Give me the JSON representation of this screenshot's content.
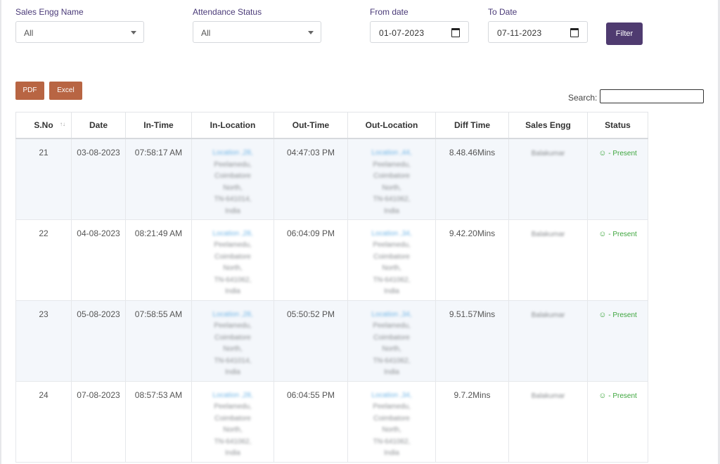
{
  "filters": {
    "sales_engg_label": "Sales Engg Name",
    "sales_engg_value": "All",
    "attendance_label": "Attendance Status",
    "attendance_value": "All",
    "from_label": "From date",
    "from_value": "01-07-2023",
    "to_label": "To Date",
    "to_value": "07-11-2023",
    "filter_button": "Filter"
  },
  "export": {
    "pdf": "PDF",
    "excel": "Excel"
  },
  "search": {
    "label": "Search:",
    "value": ""
  },
  "table": {
    "headers": [
      "S.No",
      "Date",
      "In-Time",
      "In-Location",
      "Out-Time",
      "Out-Location",
      "Diff Time",
      "Sales Engg",
      "Status"
    ],
    "rows": [
      {
        "sno": "21",
        "date": "03-08-2023",
        "in_time": "07:58:17 AM",
        "in_location": [
          "Location ,28,",
          "Peelamedu,",
          "Coimbatore",
          "North,",
          "TN-641014,",
          "India"
        ],
        "out_time": "04:47:03 PM",
        "out_location": [
          "Location ,44,",
          "Peelamedu,",
          "Coimbatore",
          "North,",
          "TN-641062,",
          "India"
        ],
        "diff_time": "8.48.46Mins",
        "sales_engg": "Balakumar",
        "status": "- Present"
      },
      {
        "sno": "22",
        "date": "04-08-2023",
        "in_time": "08:21:49 AM",
        "in_location": [
          "Location ,28,",
          "Peelamedu,",
          "Coimbatore",
          "North,",
          "TN-641062,",
          "India"
        ],
        "out_time": "06:04:09 PM",
        "out_location": [
          "Location ,34,",
          "Peelamedu,",
          "Coimbatore",
          "North,",
          "TN-641062,",
          "India"
        ],
        "diff_time": "9.42.20Mins",
        "sales_engg": "Balakumar",
        "status": "- Present"
      },
      {
        "sno": "23",
        "date": "05-08-2023",
        "in_time": "07:58:55 AM",
        "in_location": [
          "Location ,28,",
          "Peelamedu,",
          "Coimbatore",
          "North,",
          "TN-641014,",
          "India"
        ],
        "out_time": "05:50:52 PM",
        "out_location": [
          "Location ,34,",
          "Peelamedu,",
          "Coimbatore",
          "North,",
          "TN-641062,",
          "India"
        ],
        "diff_time": "9.51.57Mins",
        "sales_engg": "Balakumar",
        "status": "- Present"
      },
      {
        "sno": "24",
        "date": "07-08-2023",
        "in_time": "08:57:53 AM",
        "in_location": [
          "Location ,28,",
          "Peelamedu,",
          "Coimbatore",
          "North,",
          "TN-641062,",
          "India"
        ],
        "out_time": "06:04:55 PM",
        "out_location": [
          "Location ,34,",
          "Peelamedu,",
          "Coimbatore",
          "North,",
          "TN-641062,",
          "India"
        ],
        "diff_time": "9.7.2Mins",
        "sales_engg": "Balakumar",
        "status": "- Present"
      }
    ]
  },
  "colors": {
    "accent": "#4f3b70",
    "export_button": "#b86543",
    "status_present": "#3ea63e",
    "label": "#4a3a78"
  },
  "icons": {
    "sort": "sort-arrows-icon",
    "calendar": "calendar-icon",
    "dropdown": "chevron-down-icon",
    "status": "smile-icon"
  }
}
